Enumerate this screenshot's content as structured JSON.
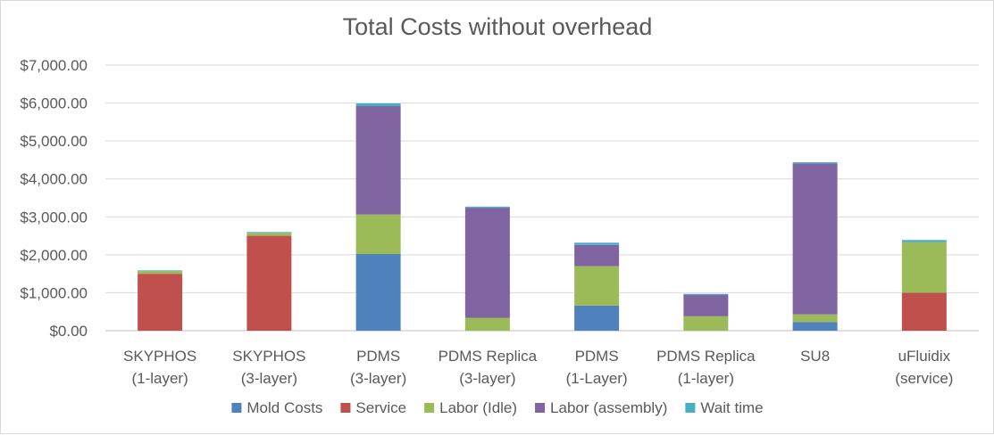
{
  "chart_data": {
    "type": "bar",
    "stacked": true,
    "title": "Total Costs without overhead",
    "xlabel": "",
    "ylabel": "",
    "ylim": [
      0,
      7000
    ],
    "yticks": [
      0,
      1000,
      2000,
      3000,
      4000,
      5000,
      6000,
      7000
    ],
    "ytick_labels": [
      "$0.00",
      "$1,000.00",
      "$2,000.00",
      "$3,000.00",
      "$4,000.00",
      "$5,000.00",
      "$6,000.00",
      "$7,000.00"
    ],
    "grid": true,
    "legend_position": "bottom",
    "categories": [
      [
        "SKYPHOS",
        "(1-layer)"
      ],
      [
        "SKYPHOS",
        "(3-layer)"
      ],
      [
        "PDMS",
        "(3-layer)"
      ],
      [
        "PDMS Replica",
        "(3-layer)"
      ],
      [
        "PDMS",
        "(1-Layer)"
      ],
      [
        "PDMS Replica",
        "(1-layer)"
      ],
      [
        "SU8",
        ""
      ],
      [
        "uFluidix",
        "(service)"
      ]
    ],
    "series": [
      {
        "name": "Mold Costs",
        "color": "#4f81bd",
        "values": [
          0,
          0,
          2020,
          0,
          660,
          0,
          230,
          0
        ]
      },
      {
        "name": "Service",
        "color": "#c0504d",
        "values": [
          1500,
          2500,
          0,
          0,
          0,
          0,
          0,
          1000
        ]
      },
      {
        "name": "Labor (Idle)",
        "color": "#9bbb59",
        "values": [
          70,
          80,
          1040,
          340,
          1040,
          380,
          200,
          1330
        ]
      },
      {
        "name": "Labor (assembly)",
        "color": "#8064a2",
        "values": [
          0,
          0,
          2860,
          2900,
          560,
          570,
          3980,
          0
        ]
      },
      {
        "name": "Wait time",
        "color": "#4bacc6",
        "values": [
          20,
          20,
          70,
          30,
          60,
          20,
          30,
          60
        ]
      }
    ]
  }
}
